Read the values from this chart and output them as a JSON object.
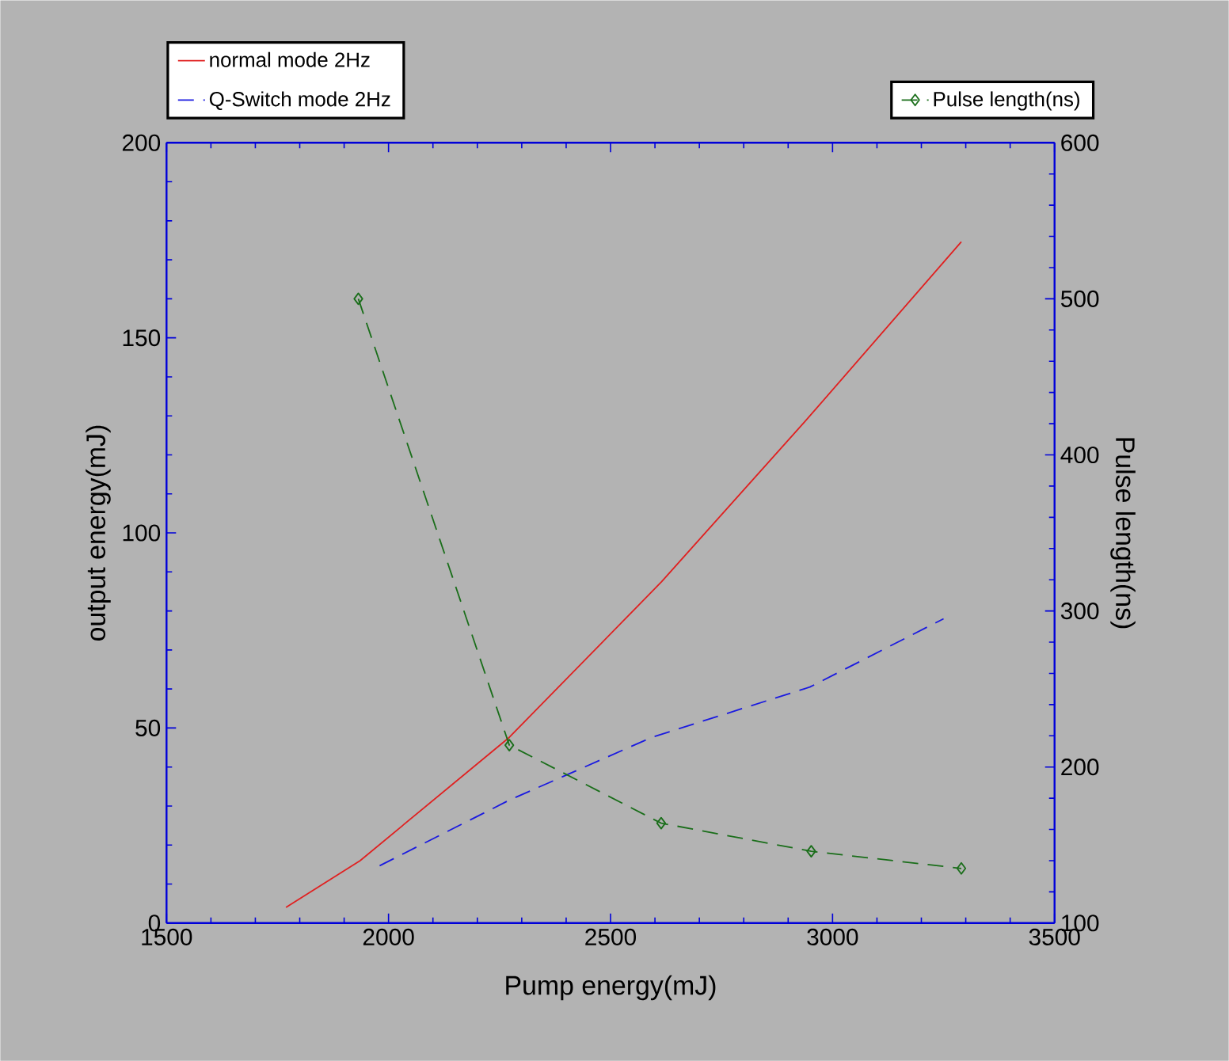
{
  "chart_data": {
    "type": "line",
    "xlabel": "Pump energy(mJ)",
    "ylabel": "output energy(mJ)",
    "y2label": "Pulse length(ns)",
    "xlim": [
      1500,
      3500
    ],
    "xticks": [
      1500,
      2000,
      2500,
      3000,
      3500
    ],
    "ylim": [
      0,
      200
    ],
    "yticks": [
      0,
      50,
      100,
      150,
      200
    ],
    "y2lim": [
      100,
      600
    ],
    "y2ticks": [
      100,
      200,
      300,
      400,
      500,
      600
    ],
    "legend": "top",
    "grid": false,
    "series": [
      {
        "name": "normal mode 2Hz",
        "color": "#e02020",
        "line_style": "solid",
        "marker": "none",
        "x": [
          1769,
          1936,
          2272,
          2615,
          2949,
          3290
        ],
        "values": [
          4,
          16,
          47.6,
          87.5,
          130,
          174.6
        ]
      },
      {
        "name": "Q-Switch mode 2Hz",
        "color": "#1a1ae0",
        "line_style": "dashed",
        "marker": "none",
        "x": [
          1980,
          2272,
          2593,
          2949,
          3250
        ],
        "values": [
          14.7,
          31.5,
          47.6,
          60.5,
          78
        ]
      },
      {
        "name": "Pulse length(ns)",
        "color": "#1a6e1a",
        "line_style": "dashed",
        "marker": "diamond",
        "axis": "y2",
        "x": [
          1932,
          2272,
          2614,
          2952,
          3290
        ],
        "values": [
          500,
          214,
          164,
          146,
          135
        ]
      }
    ]
  }
}
